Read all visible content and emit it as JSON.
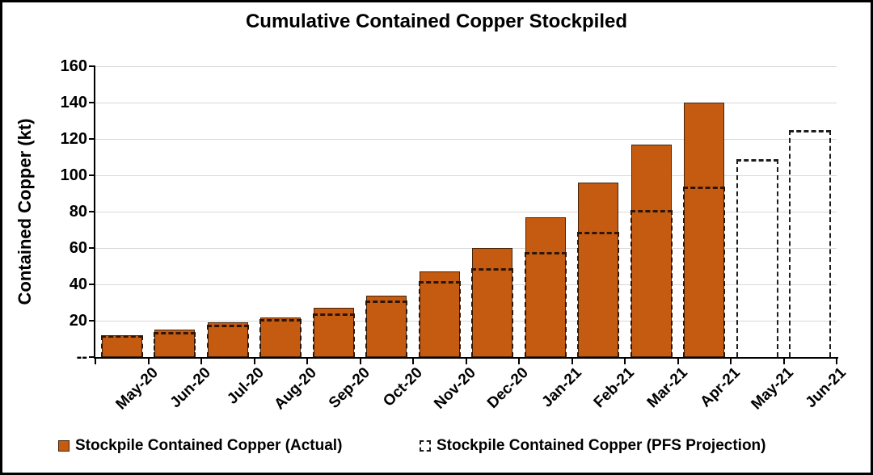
{
  "title": "Cumulative Contained Copper Stockpiled",
  "chart_data": {
    "type": "bar",
    "title": "Cumulative Contained Copper Stockpiled",
    "xlabel": "",
    "ylabel": "Contained Copper (kt)",
    "ylim": [
      0,
      160
    ],
    "ytick_values": [
      160,
      140,
      120,
      100,
      80,
      60,
      40,
      20,
      0
    ],
    "ytick_labels": [
      "160",
      "140",
      "120",
      "100",
      "80",
      "60",
      "40",
      "20",
      "--"
    ],
    "grid": true,
    "legend_position": "bottom",
    "categories": [
      "May-20",
      "Jun-20",
      "Jul-20",
      "Aug-20",
      "Sep-20",
      "Oct-20",
      "Nov-20",
      "Dec-20",
      "Jan-21",
      "Feb-21",
      "Mar-21",
      "Apr-21",
      "May-21",
      "Jun-21"
    ],
    "series": [
      {
        "name": "Stockpile Contained Copper (Actual)",
        "style": "solid-bar",
        "values": [
          12,
          15,
          19,
          22,
          27,
          34,
          47,
          60,
          77,
          96,
          117,
          140,
          null,
          null
        ]
      },
      {
        "name": "Stockpile Contained Copper (PFS Projection)",
        "style": "dashed-outline",
        "values": [
          12,
          14,
          18,
          21,
          24,
          31,
          42,
          49,
          58,
          69,
          81,
          94,
          109,
          125
        ]
      }
    ],
    "colors": {
      "bar_fill": "#C55A11",
      "bar_border": "#46240A",
      "projection_dash": "#2E1503",
      "outline_bar_dash": "#1C1C1C",
      "gridline": "#D8D8D8",
      "axis": "#000000",
      "text": "#000000"
    }
  },
  "legend": {
    "actual_label": "Stockpile Contained Copper (Actual)",
    "projection_label": "Stockpile Contained Copper (PFS Projection)"
  }
}
